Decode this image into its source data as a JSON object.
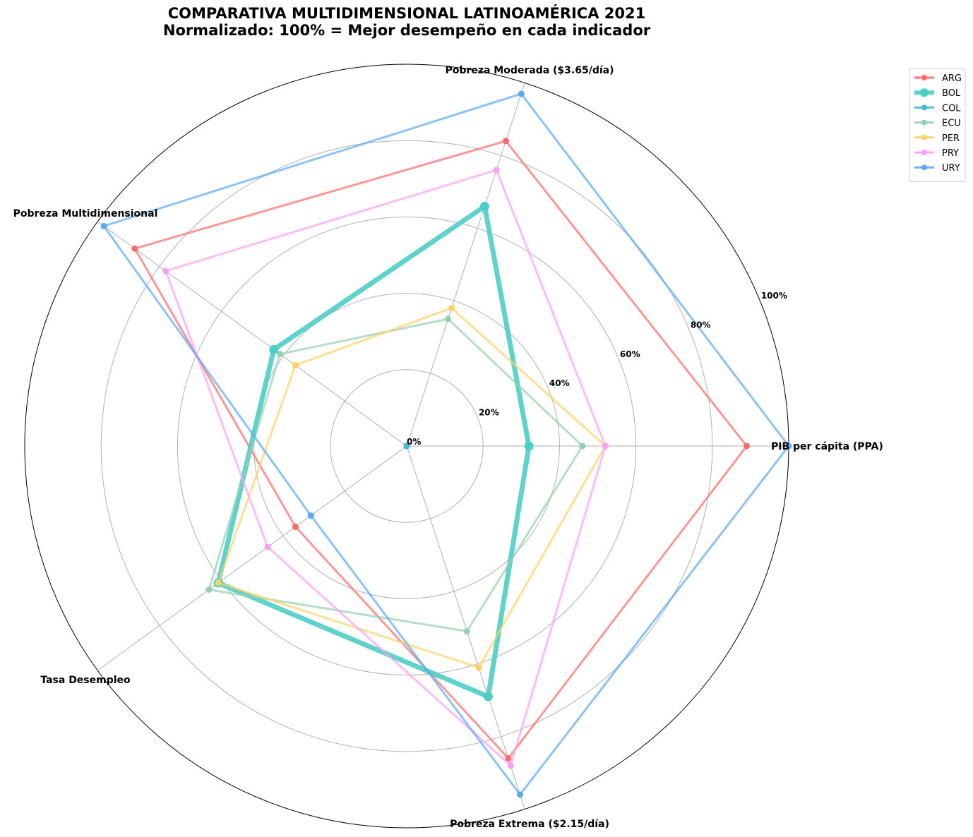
{
  "chart_data": {
    "type": "radar",
    "title": "COMPARATIVA MULTIDIMENSIONAL LATINOAMÉRICA 2021",
    "subtitle": "Normalizado: 100% = Mejor desempeño en cada indicador",
    "axes": [
      "PIB per cápita (PPA)",
      "Pobreza Moderada ($3.65/día)",
      "Pobreza Multidimensional",
      "Tasa Desempleo",
      "Pobreza Extrema ($2.15/día)"
    ],
    "radial_ticks": [
      "0%",
      "20%",
      "40%",
      "60%",
      "80%",
      "100%"
    ],
    "rlim": [
      0,
      100
    ],
    "grid": true,
    "legend_position": "top-right",
    "series": [
      {
        "name": "ARG",
        "color": "#ff6b6b",
        "values": [
          89,
          84,
          88,
          36,
          86
        ]
      },
      {
        "name": "BOL",
        "color": "#4ecdc4",
        "values": [
          32,
          66,
          43,
          61,
          69
        ],
        "highlight": true
      },
      {
        "name": "COL",
        "color": "#45b7d1",
        "values": [
          0,
          0,
          0,
          0,
          0
        ]
      },
      {
        "name": "ECU",
        "color": "#96ceb4",
        "values": [
          46,
          35,
          41,
          64,
          51
        ]
      },
      {
        "name": "PER",
        "color": "#ffd166",
        "values": [
          52,
          38,
          36,
          61,
          61
        ]
      },
      {
        "name": "PRY",
        "color": "#ff9ff3",
        "values": [
          52,
          76,
          78,
          45,
          88
        ]
      },
      {
        "name": "URY",
        "color": "#5aa9f5",
        "values": [
          100,
          97,
          98,
          31,
          96
        ]
      }
    ]
  }
}
